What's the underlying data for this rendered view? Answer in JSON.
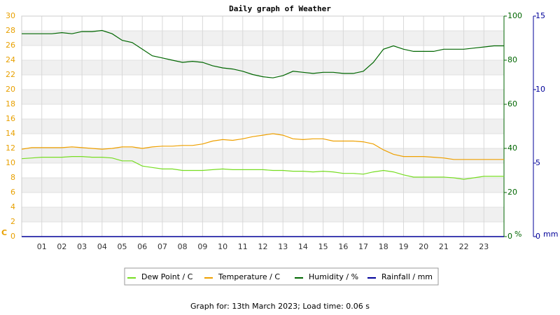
{
  "chart_data": {
    "type": "line",
    "title": "Daily graph of Weather",
    "footer": "Graph for: 13th March 2023; Load time: 0.06 s",
    "ylabel": "C",
    "y2label": "%",
    "y3label": "mm",
    "x": [
      0,
      0.5,
      1,
      1.5,
      2,
      2.5,
      3,
      3.5,
      4,
      4.5,
      5,
      5.5,
      6,
      6.5,
      7,
      7.5,
      8,
      8.5,
      9,
      9.5,
      10,
      10.5,
      11,
      11.5,
      12,
      12.5,
      13,
      13.5,
      14,
      14.5,
      15,
      15.5,
      16,
      16.5,
      17,
      17.5,
      18,
      18.5,
      19,
      19.5,
      20,
      20.5,
      21,
      21.5,
      22,
      22.5,
      23,
      23.5,
      24
    ],
    "xlim": [
      0,
      24
    ],
    "xticks": [
      {
        "value": 1,
        "label": "01"
      },
      {
        "value": 2,
        "label": "02"
      },
      {
        "value": 3,
        "label": "03"
      },
      {
        "value": 4,
        "label": "04"
      },
      {
        "value": 5,
        "label": "05"
      },
      {
        "value": 6,
        "label": "06"
      },
      {
        "value": 7,
        "label": "07"
      },
      {
        "value": 8,
        "label": "08"
      },
      {
        "value": 9,
        "label": "09"
      },
      10,
      11,
      12,
      13,
      14,
      15,
      16,
      17,
      18,
      19,
      20,
      21,
      22,
      23
    ],
    "ylim": [
      0,
      30
    ],
    "yticks": [
      0,
      2,
      4,
      6,
      8,
      10,
      12,
      14,
      16,
      18,
      20,
      22,
      24,
      26,
      28,
      30
    ],
    "y2lim": [
      0,
      100
    ],
    "y2ticks": [
      0,
      20,
      40,
      60,
      80,
      100
    ],
    "y3lim": [
      0,
      15
    ],
    "y3ticks": [
      0,
      5,
      10,
      15
    ],
    "grid": true,
    "series": [
      {
        "name": "Dew Point / C",
        "color": "#77dd22",
        "axis": "y",
        "values": [
          10.6,
          10.7,
          10.8,
          10.8,
          10.8,
          10.9,
          10.9,
          10.8,
          10.8,
          10.7,
          10.3,
          10.3,
          9.6,
          9.4,
          9.2,
          9.2,
          9.0,
          9.0,
          9.0,
          9.1,
          9.2,
          9.1,
          9.1,
          9.1,
          9.1,
          9.0,
          9.0,
          8.9,
          8.9,
          8.8,
          8.9,
          8.8,
          8.6,
          8.6,
          8.5,
          8.8,
          9.0,
          8.8,
          8.4,
          8.1,
          8.1,
          8.1,
          8.1,
          8.0,
          7.8,
          8.0,
          8.2,
          8.2,
          8.2
        ]
      },
      {
        "name": "Temperature / C",
        "color": "#eea000",
        "axis": "y",
        "values": [
          11.9,
          12.1,
          12.1,
          12.1,
          12.1,
          12.2,
          12.1,
          12.0,
          11.9,
          12.0,
          12.2,
          12.2,
          12.0,
          12.2,
          12.3,
          12.3,
          12.4,
          12.4,
          12.6,
          13.0,
          13.2,
          13.1,
          13.3,
          13.6,
          13.8,
          14.0,
          13.8,
          13.3,
          13.2,
          13.3,
          13.3,
          13.0,
          13.0,
          13.0,
          12.9,
          12.6,
          11.8,
          11.2,
          10.9,
          10.9,
          10.9,
          10.8,
          10.7,
          10.5,
          10.5,
          10.5,
          10.5,
          10.5,
          10.5
        ]
      },
      {
        "name": "Humidity / %",
        "color": "#006600",
        "axis": "y2",
        "values": [
          92,
          92,
          92,
          92,
          92.5,
          92,
          93,
          93,
          93.5,
          92,
          89,
          88,
          85,
          82,
          81,
          80,
          79,
          79.5,
          79,
          77.5,
          76.5,
          76,
          75,
          73.5,
          72.5,
          72,
          73,
          75,
          74.5,
          74,
          74.5,
          74.5,
          74,
          74,
          75,
          79,
          85,
          86.5,
          85,
          84,
          84,
          84,
          85,
          85,
          85,
          85.5,
          86,
          86.5,
          86.5
        ]
      },
      {
        "name": "Rainfall / mm",
        "color": "#000099",
        "axis": "y3",
        "values": [
          0,
          0,
          0,
          0,
          0,
          0,
          0,
          0,
          0,
          0,
          0,
          0,
          0,
          0,
          0,
          0,
          0,
          0,
          0,
          0,
          0,
          0,
          0,
          0,
          0,
          0,
          0,
          0,
          0,
          0,
          0,
          0,
          0,
          0,
          0,
          0,
          0,
          0,
          0,
          0,
          0,
          0,
          0,
          0,
          0,
          0,
          0,
          0,
          0
        ]
      }
    ]
  }
}
